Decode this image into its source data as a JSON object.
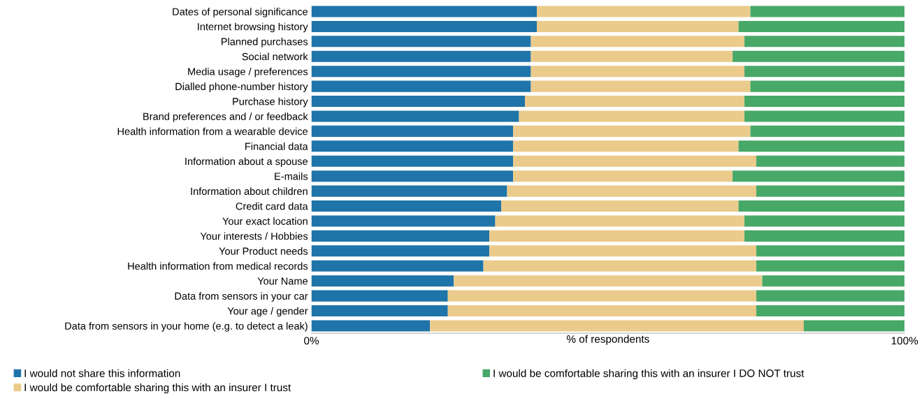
{
  "chart_data": {
    "type": "bar",
    "orientation": "horizontal",
    "stacked": true,
    "xlabel": "% of respondents",
    "categories": [
      "Dates of personal significance",
      "Internet browsing history",
      "Planned purchases",
      "Social network",
      "Media usage / preferences",
      "Dialled phone-number history",
      "Purchase history",
      "Brand preferences and / or feedback",
      "Health information from a wearable device",
      "Financial data",
      "Information about a spouse",
      "E-mails",
      "Information about children",
      "Credit card data",
      "Your exact location",
      "Your interests / Hobbies",
      "Your Product needs",
      "Health information from medical records",
      "Your Name",
      "Data from sensors in your car",
      "Your age / gender",
      "Data from sensors in your home (e.g. to detect a leak)"
    ],
    "series": [
      {
        "name": "I would not share this information",
        "color": "#1f74a9",
        "values": [
          38,
          38,
          37,
          37,
          37,
          37,
          36,
          35,
          34,
          34,
          34,
          34,
          33,
          32,
          31,
          30,
          30,
          29,
          24,
          23,
          23,
          20
        ]
      },
      {
        "name": "I would be comfortable sharing this with an insurer I trust",
        "color": "#ebcb8b",
        "values": [
          36,
          34,
          36,
          34,
          36,
          37,
          37,
          38,
          40,
          38,
          41,
          37,
          42,
          40,
          42,
          43,
          45,
          46,
          52,
          52,
          52,
          63
        ]
      },
      {
        "name": "I would be comfortable sharing this with an insurer I DO NOT trust",
        "color": "#48a868",
        "values": [
          26,
          28,
          27,
          29,
          27,
          26,
          27,
          27,
          26,
          28,
          25,
          29,
          25,
          28,
          27,
          27,
          25,
          25,
          24,
          25,
          25,
          17
        ]
      }
    ],
    "xlim": [
      0,
      100
    ],
    "xticks": [
      {
        "value": 0,
        "label": "0%"
      },
      {
        "value": 100,
        "label": "100%"
      }
    ],
    "grid": false,
    "legend": "bottom"
  }
}
